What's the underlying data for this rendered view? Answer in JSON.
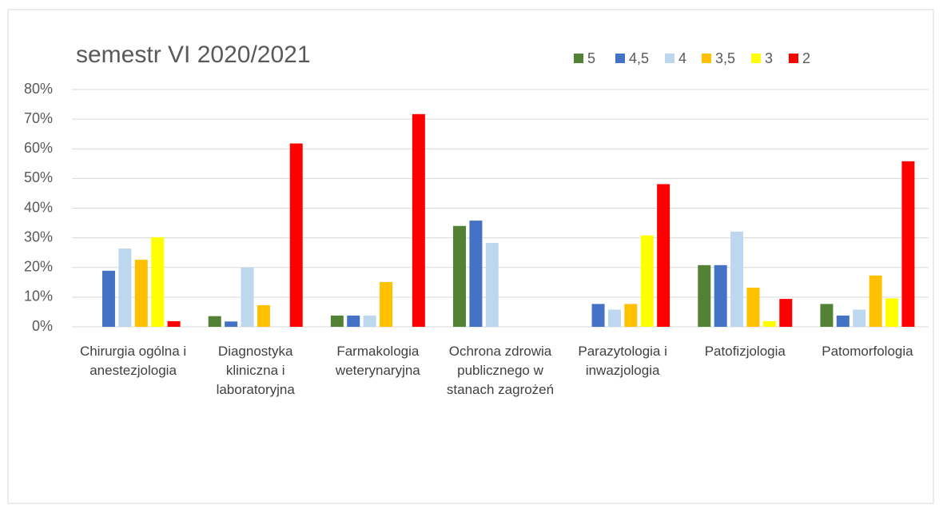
{
  "chart_data": {
    "type": "bar",
    "title": "semestr  VI 2020/2021",
    "categories": [
      "Chirurgia ogólna i anestezjologia",
      "Diagnostyka kliniczna i laboratoryjna",
      "Farmakologia weterynaryjna",
      "Ochrona zdrowia publicznego w stanach zagrożeń",
      "Parazytologia i inwazjologia",
      "Patofizjologia",
      "Patomorfologia"
    ],
    "series": [
      {
        "name": "5",
        "color": "#548235",
        "values": [
          0,
          3.6,
          3.8,
          34,
          0,
          20.8,
          7.7
        ]
      },
      {
        "name": "4,5",
        "color": "#4472c4",
        "values": [
          18.9,
          1.8,
          3.8,
          35.8,
          7.7,
          20.8,
          3.8
        ]
      },
      {
        "name": "4",
        "color": "#bdd7ee",
        "values": [
          26.4,
          20,
          3.8,
          28.3,
          5.8,
          32.1,
          5.8
        ]
      },
      {
        "name": "3,5",
        "color": "#ffc000",
        "values": [
          22.6,
          7.3,
          15.1,
          0,
          7.7,
          13.2,
          17.3
        ]
      },
      {
        "name": "3",
        "color": "#ffff00",
        "values": [
          30.2,
          0,
          0,
          0,
          30.8,
          1.9,
          9.6
        ]
      },
      {
        "name": "2",
        "color": "#ff0000",
        "values": [
          1.9,
          61.8,
          71.7,
          0,
          48.1,
          9.4,
          55.8
        ]
      }
    ],
    "ylim": [
      0,
      80
    ],
    "yticks": [
      {
        "value": 0,
        "label": "0%"
      },
      {
        "value": 10,
        "label": "10%"
      },
      {
        "value": 20,
        "label": "20%"
      },
      {
        "value": 30,
        "label": "30%"
      },
      {
        "value": 40,
        "label": "40%"
      },
      {
        "value": 50,
        "label": "50%"
      },
      {
        "value": 60,
        "label": "60%"
      },
      {
        "value": 70,
        "label": "70%"
      },
      {
        "value": 80,
        "label": "80%"
      }
    ],
    "grid": true,
    "legend": "top-right"
  }
}
